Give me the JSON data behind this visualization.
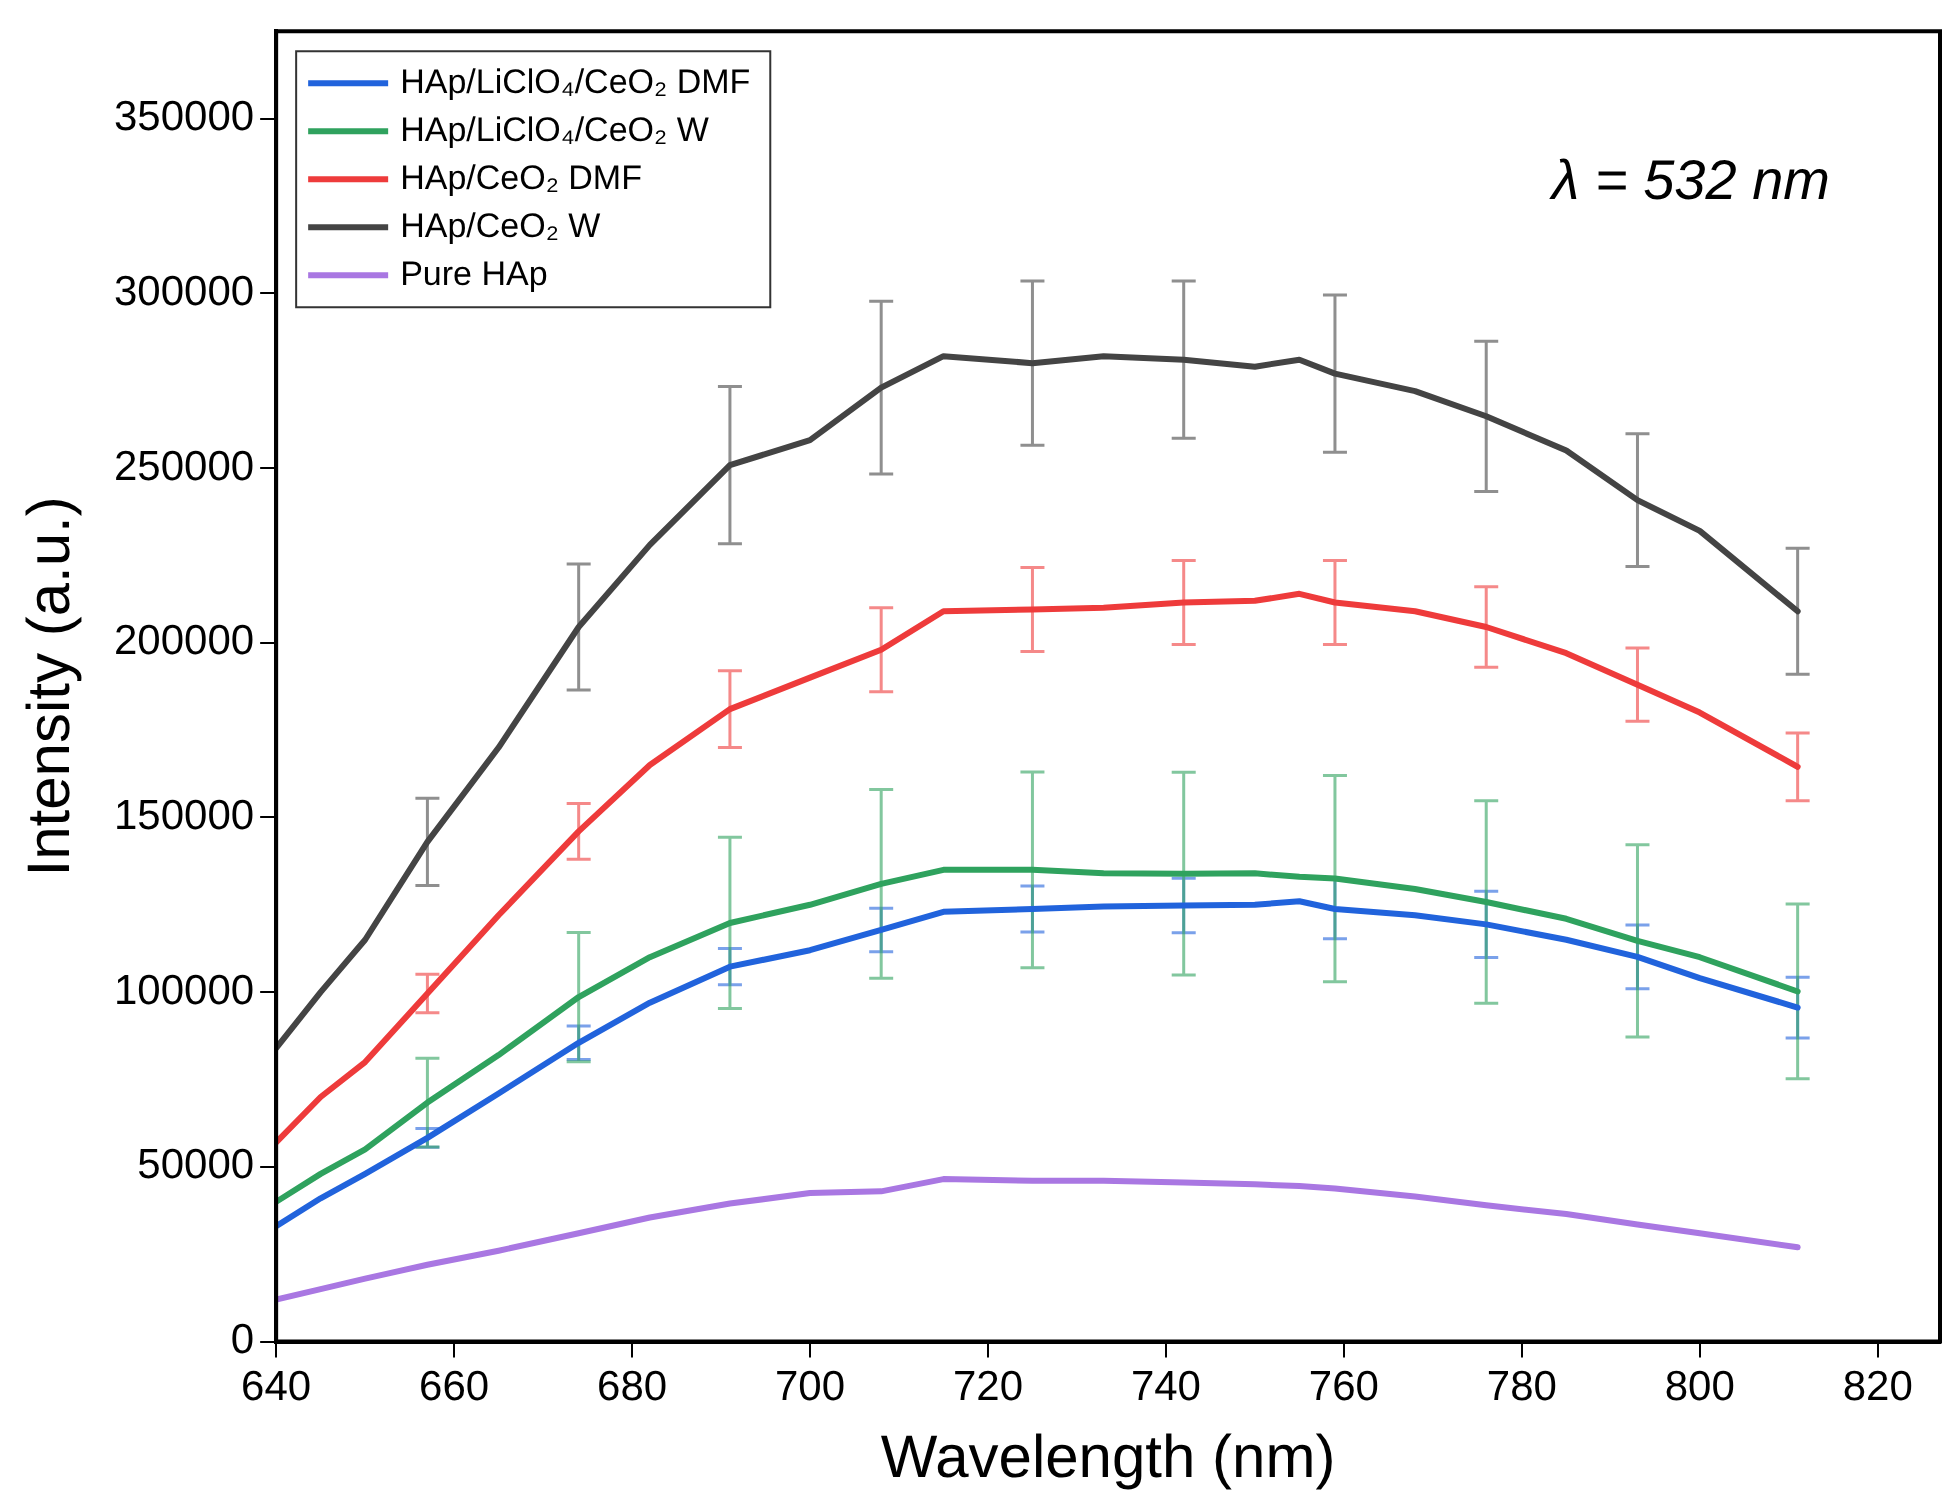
{
  "chart_data": {
    "type": "line",
    "xlabel": "Wavelength (nm)",
    "ylabel": "Intensity (a.u.)",
    "annotations": [
      "λ = 532 nm"
    ],
    "x": [
      640,
      645,
      650,
      657,
      665,
      674,
      682,
      691,
      700,
      708,
      715,
      725,
      733,
      742,
      750,
      755,
      759,
      768,
      776,
      785,
      793,
      800,
      811
    ],
    "xlim": [
      640,
      827
    ],
    "xticks": [
      640,
      660,
      680,
      700,
      720,
      740,
      760,
      780,
      800,
      820
    ],
    "ylim": [
      0,
      375000
    ],
    "yticks": [
      0,
      50000,
      100000,
      150000,
      200000,
      250000,
      300000,
      350000
    ],
    "grid": false,
    "legend": "top left",
    "marker": "none",
    "line_style": "solid",
    "series": [
      {
        "name": "HAp/LiClO₄/CeO₂ DMF",
        "color": "#2163dc",
        "values": [
          33000,
          41000,
          48000,
          58300,
          71000,
          85500,
          97000,
          107300,
          112000,
          117800,
          123000,
          123800,
          124500,
          124800,
          125000,
          126000,
          123800,
          122000,
          119400,
          115000,
          110100,
          104000,
          95600
        ],
        "errors": [
          null,
          null,
          null,
          2700,
          null,
          4800,
          null,
          5200,
          null,
          6200,
          null,
          6600,
          null,
          7800,
          null,
          null,
          8500,
          null,
          9500,
          null,
          9100,
          null,
          8700
        ]
      },
      {
        "name": "HAp/LiClO₄/CeO₂ W",
        "color": "#2fa25e",
        "values": [
          40000,
          48000,
          55000,
          68400,
          82000,
          98600,
          110000,
          119800,
          125000,
          131000,
          135000,
          135000,
          134000,
          133900,
          134000,
          133000,
          132500,
          129500,
          125800,
          121000,
          114700,
          110000,
          100200
        ],
        "errors": [
          null,
          null,
          null,
          12700,
          null,
          18500,
          null,
          24500,
          null,
          27000,
          null,
          28000,
          null,
          29000,
          null,
          null,
          29500,
          null,
          29000,
          null,
          27500,
          null,
          25000
        ]
      },
      {
        "name": "HAp/CeO₂ DMF",
        "color": "#ee3b3b",
        "values": [
          57000,
          70000,
          80000,
          99600,
          122000,
          146000,
          165000,
          181000,
          190000,
          198000,
          209000,
          209500,
          210000,
          211500,
          212000,
          214000,
          211500,
          209000,
          204500,
          197000,
          188000,
          180000,
          164500
        ],
        "errors": [
          null,
          null,
          null,
          5500,
          null,
          8000,
          null,
          11000,
          null,
          12000,
          null,
          12000,
          null,
          12000,
          null,
          null,
          12000,
          null,
          11500,
          null,
          10500,
          null,
          9700
        ]
      },
      {
        "name": "HAp/CeO₂ W",
        "color": "#444444",
        "values": [
          84000,
          100000,
          115000,
          143000,
          170000,
          204500,
          228000,
          250800,
          258000,
          273000,
          282000,
          280000,
          282000,
          281000,
          279000,
          281000,
          277000,
          272000,
          264800,
          255000,
          240800,
          232000,
          209000
        ],
        "errors": [
          null,
          null,
          null,
          12500,
          null,
          18000,
          null,
          22500,
          null,
          24700,
          null,
          23500,
          null,
          22500,
          null,
          null,
          22500,
          null,
          21500,
          null,
          19000,
          null,
          18000
        ]
      },
      {
        "name": "Pure HAp",
        "color": "#a977e2",
        "values": [
          12000,
          15000,
          18000,
          22000,
          26000,
          31000,
          35500,
          39500,
          42500,
          43000,
          46500,
          46000,
          46000,
          45500,
          45000,
          44500,
          43800,
          41500,
          39000,
          36500,
          33500,
          31000,
          27000
        ]
      }
    ]
  }
}
